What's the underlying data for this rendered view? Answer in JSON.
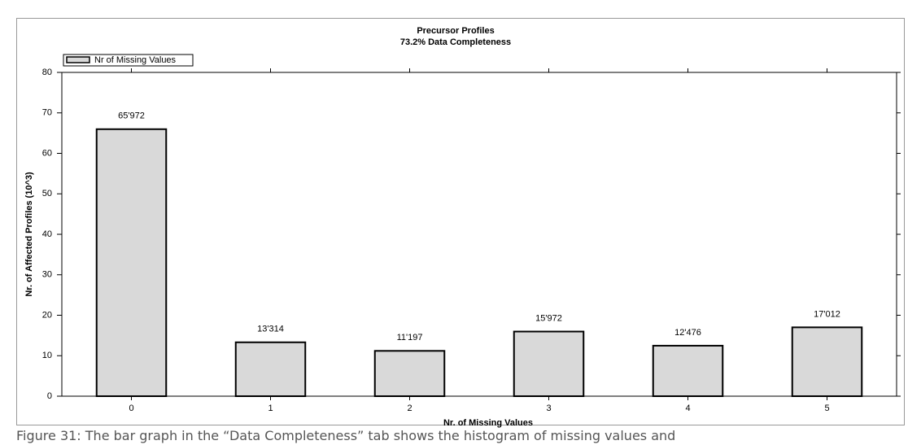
{
  "chart_data": {
    "type": "bar",
    "title": "Precursor Profiles",
    "subtitle": "73.2% Data Completeness",
    "xlabel": "Nr. of Missing Values",
    "ylabel": "Nr. of Affected Profiles (10^3)",
    "categories": [
      "0",
      "1",
      "2",
      "3",
      "4",
      "5"
    ],
    "series": [
      {
        "name": "Nr of Missing Values",
        "color": "#d9d9d9",
        "values": [
          65.972,
          13.314,
          11.197,
          15.972,
          12.476,
          17.012
        ],
        "value_labels": [
          "65'972",
          "13'314",
          "11'197",
          "15'972",
          "12'476",
          "17'012"
        ]
      }
    ],
    "ylim": [
      0,
      80
    ],
    "yticks": [
      0,
      10,
      20,
      30,
      40,
      50,
      60,
      70,
      80
    ],
    "legend": "top-left"
  },
  "caption": "Figure 31: The bar graph in the “Data Completeness” tab shows the histogram of missing values and"
}
